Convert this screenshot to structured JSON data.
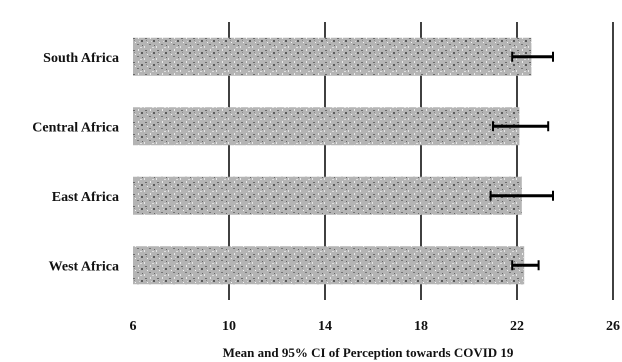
{
  "chart_data": {
    "type": "bar",
    "orientation": "horizontal",
    "categories": [
      "South Africa",
      "Central Africa",
      "East Africa",
      "West Africa"
    ],
    "values": [
      22.6,
      22.1,
      22.2,
      22.3
    ],
    "ci_low": [
      21.8,
      21.0,
      20.9,
      21.8
    ],
    "ci_high": [
      23.5,
      23.3,
      23.5,
      22.9
    ],
    "xlabel": "Mean and 95% CI of Perception towards COVID 19",
    "ylabel": "",
    "xlim": [
      6,
      26
    ],
    "xticks": [
      6,
      10,
      14,
      18,
      22,
      26
    ],
    "grid": "vertical",
    "bar_color": "#a9a9a9",
    "text_color": "#111111"
  }
}
